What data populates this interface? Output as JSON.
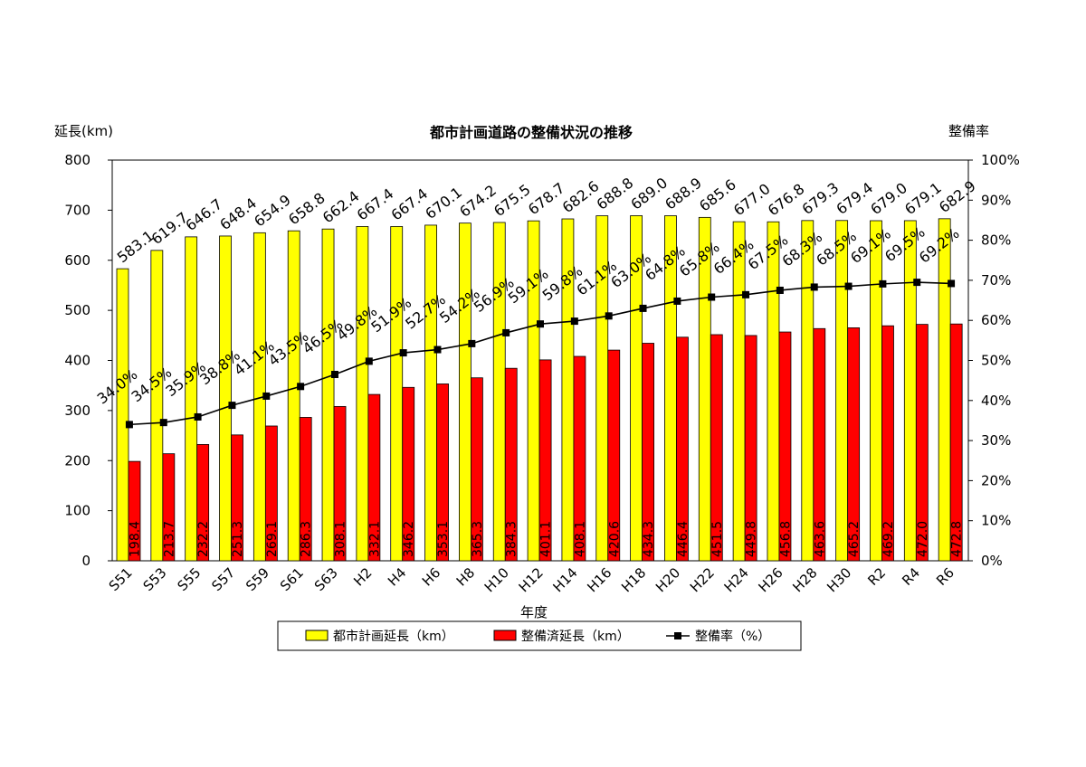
{
  "chart_data": {
    "type": "bar",
    "title": "都市計画道路の整備状況の推移",
    "xlabel": "年度",
    "ylabel": "延長(km)",
    "y2label": "整備率",
    "ylim": [
      0,
      800
    ],
    "y2lim": [
      0,
      100
    ],
    "yticks": [
      "0",
      "100",
      "200",
      "300",
      "400",
      "500",
      "600",
      "700",
      "800"
    ],
    "y2ticks": [
      "0%",
      "10%",
      "20%",
      "30%",
      "40%",
      "50%",
      "60%",
      "70%",
      "80%",
      "90%",
      "100%"
    ],
    "grid": false,
    "legend_position": "bottom",
    "categories": [
      "S51",
      "S53",
      "S55",
      "S57",
      "S59",
      "S61",
      "S63",
      "H2",
      "H4",
      "H6",
      "H8",
      "H10",
      "H12",
      "H14",
      "H16",
      "H18",
      "H20",
      "H22",
      "H24",
      "H26",
      "H28",
      "H30",
      "R2",
      "R4",
      "R6"
    ],
    "series": [
      {
        "name": "都市計画延長（km）",
        "type": "bar",
        "color": "#ffff00",
        "values": [
          583.1,
          619.7,
          646.7,
          648.4,
          654.9,
          658.8,
          662.4,
          667.4,
          667.4,
          670.1,
          674.2,
          675.5,
          678.7,
          682.6,
          688.8,
          689.0,
          688.9,
          685.6,
          677.0,
          676.8,
          679.3,
          679.4,
          679.0,
          679.1,
          682.9
        ],
        "labels": [
          "583.1",
          "619.7",
          "646.7",
          "648.4",
          "654.9",
          "658.8",
          "662.4",
          "667.4",
          "667.4",
          "670.1",
          "674.2",
          "675.5",
          "678.7",
          "682.6",
          "688.8",
          "689.0",
          "688.9",
          "685.6",
          "677.0",
          "676.8",
          "679.3",
          "679.4",
          "679.0",
          "679.1",
          "682.9"
        ]
      },
      {
        "name": "整備済延長（km）",
        "type": "bar",
        "color": "#ff0000",
        "values": [
          198.4,
          213.7,
          232.2,
          251.3,
          269.1,
          286.3,
          308.1,
          332.1,
          346.2,
          353.1,
          365.3,
          384.3,
          401.1,
          408.1,
          420.6,
          434.3,
          446.4,
          451.5,
          449.8,
          456.8,
          463.6,
          465.2,
          469.2,
          472.0,
          472.8
        ],
        "labels": [
          "198.4",
          "213.7",
          "232.2",
          "251.3",
          "269.1",
          "286.3",
          "308.1",
          "332.1",
          "346.2",
          "353.1",
          "365.3",
          "384.3",
          "401.1",
          "408.1",
          "420.6",
          "434.3",
          "446.4",
          "451.5",
          "449.8",
          "456.8",
          "463.6",
          "465.2",
          "469.2",
          "472.0",
          "472.8"
        ]
      },
      {
        "name": "整備率（%）",
        "type": "line",
        "axis": "right",
        "color": "#000000",
        "values": [
          34.0,
          34.5,
          35.9,
          38.8,
          41.1,
          43.5,
          46.5,
          49.8,
          51.9,
          52.7,
          54.2,
          56.9,
          59.1,
          59.8,
          61.1,
          63.0,
          64.8,
          65.8,
          66.4,
          67.5,
          68.3,
          68.5,
          69.1,
          69.5,
          69.2
        ],
        "labels": [
          "34.0%",
          "34.5%",
          "35.9%",
          "38.8%",
          "41.1%",
          "43.5%",
          "46.5%",
          "49.8%",
          "51.9%",
          "52.7%",
          "54.2%",
          "56.9%",
          "59.1%",
          "59.8%",
          "61.1%",
          "63.0%",
          "64.8%",
          "65.8%",
          "66.4%",
          "67.5%",
          "68.3%",
          "68.5%",
          "69.1%",
          "69.5%",
          "69.2%"
        ]
      }
    ]
  }
}
